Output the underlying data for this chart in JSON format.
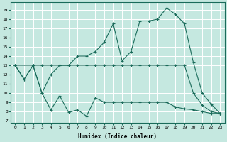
{
  "xlabel": "Humidex (Indice chaleur)",
  "bg_color": "#c5e8e0",
  "grid_color": "#ffffff",
  "line_color": "#1a6b5a",
  "xlim": [
    -0.5,
    23.5
  ],
  "ylim": [
    6.8,
    19.8
  ],
  "yticks": [
    7,
    8,
    9,
    10,
    11,
    12,
    13,
    14,
    15,
    16,
    17,
    18,
    19
  ],
  "xticks": [
    0,
    1,
    2,
    3,
    4,
    5,
    6,
    7,
    8,
    9,
    10,
    11,
    12,
    13,
    14,
    15,
    16,
    17,
    18,
    19,
    20,
    21,
    22,
    23
  ],
  "line1_x": [
    0,
    1,
    2,
    3,
    4,
    5,
    6,
    7,
    8,
    9,
    10,
    11,
    12,
    13,
    14,
    15,
    16,
    17,
    18,
    19,
    20,
    21,
    22,
    23
  ],
  "line1_y": [
    13,
    11.5,
    13,
    10,
    8.2,
    9.7,
    7.9,
    8.2,
    7.5,
    9.5,
    9.0,
    9.0,
    9.0,
    9.0,
    9.0,
    9.0,
    9.0,
    9.0,
    8.5,
    8.3,
    8.2,
    8.0,
    7.8,
    7.8
  ],
  "line2_x": [
    0,
    1,
    2,
    3,
    4,
    5,
    6,
    7,
    8,
    9,
    10,
    11,
    12,
    13,
    14,
    15,
    16,
    17,
    18,
    19,
    20,
    21,
    22,
    23
  ],
  "line2_y": [
    13,
    11.5,
    13,
    13,
    13,
    13,
    13,
    13,
    13,
    13,
    13,
    13,
    13,
    13,
    13,
    13,
    13,
    13,
    13,
    13,
    10,
    8.7,
    8.0,
    7.8
  ],
  "line3_x": [
    0,
    2,
    3,
    4,
    5,
    6,
    7,
    8,
    9,
    10,
    11,
    12,
    13,
    14,
    15,
    16,
    17,
    18,
    19,
    20,
    21,
    22,
    23
  ],
  "line3_y": [
    13,
    13,
    10,
    12,
    13,
    13,
    14,
    14,
    14.5,
    15.5,
    17.5,
    13.5,
    14.5,
    17.8,
    17.8,
    18.0,
    19.2,
    18.5,
    17.5,
    13.3,
    10,
    8.8,
    7.8
  ]
}
